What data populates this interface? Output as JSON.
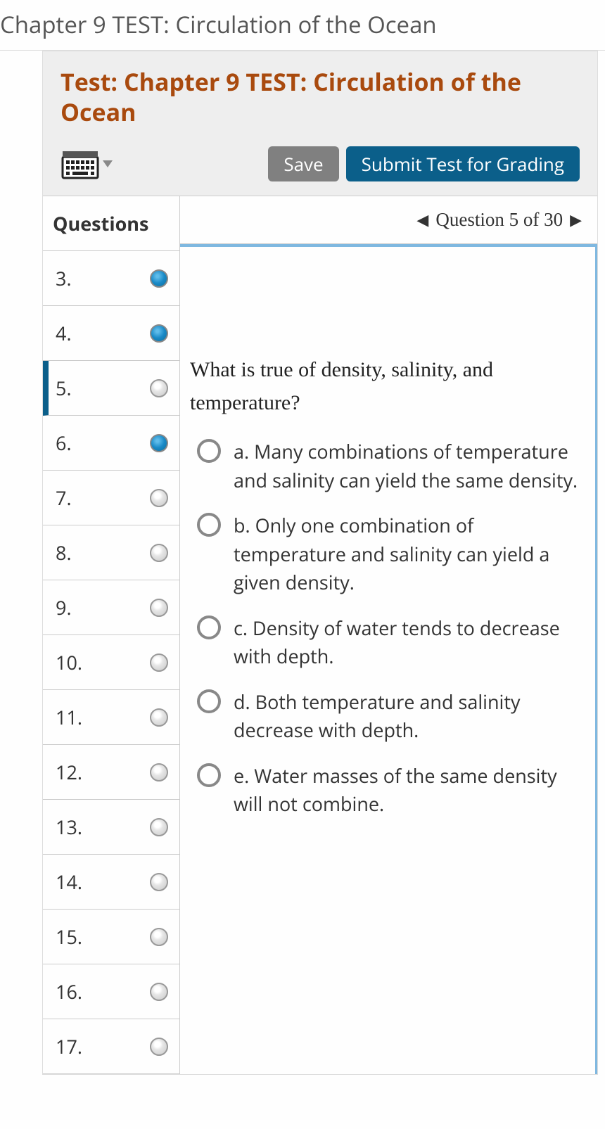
{
  "page": {
    "header": "Chapter 9 TEST: Circulation of the Ocean"
  },
  "test": {
    "title": "Test: Chapter 9 TEST: Circulation of the Ocean"
  },
  "toolbar": {
    "save_label": "Save",
    "submit_label": "Submit Test for Grading"
  },
  "sidebar": {
    "heading": "Questions",
    "items": [
      {
        "num": "3.",
        "answered": true,
        "current": false
      },
      {
        "num": "4.",
        "answered": true,
        "current": false
      },
      {
        "num": "5.",
        "answered": false,
        "current": true
      },
      {
        "num": "6.",
        "answered": true,
        "current": false
      },
      {
        "num": "7.",
        "answered": false,
        "current": false
      },
      {
        "num": "8.",
        "answered": false,
        "current": false
      },
      {
        "num": "9.",
        "answered": false,
        "current": false
      },
      {
        "num": "10.",
        "answered": false,
        "current": false
      },
      {
        "num": "11.",
        "answered": false,
        "current": false
      },
      {
        "num": "12.",
        "answered": false,
        "current": false
      },
      {
        "num": "13.",
        "answered": false,
        "current": false
      },
      {
        "num": "14.",
        "answered": false,
        "current": false
      },
      {
        "num": "15.",
        "answered": false,
        "current": false
      },
      {
        "num": "16.",
        "answered": false,
        "current": false
      },
      {
        "num": "17.",
        "answered": false,
        "current": false
      }
    ]
  },
  "nav": {
    "position_label": "Question 5 of 30"
  },
  "question": {
    "prompt": "What is true of density, salinity, and temperature?",
    "options": [
      {
        "letter": "a.",
        "text": "Many combinations of temperature and salinity can yield the same density."
      },
      {
        "letter": "b.",
        "text": "Only one combination of temperature and salinity can yield a given density."
      },
      {
        "letter": "c.",
        "text": "Density of water tends to decrease with depth."
      },
      {
        "letter": "d.",
        "text": "Both temperature and salinity decrease with depth."
      },
      {
        "letter": "e.",
        "text": "Water masses of the same density will not combine."
      }
    ]
  },
  "colors": {
    "accent_title": "#a94a0e",
    "primary_button": "#0b5f8a",
    "secondary_button": "#808080",
    "frame_highlight": "#7fb8e0",
    "answered_dot": "#1a8ac7"
  }
}
